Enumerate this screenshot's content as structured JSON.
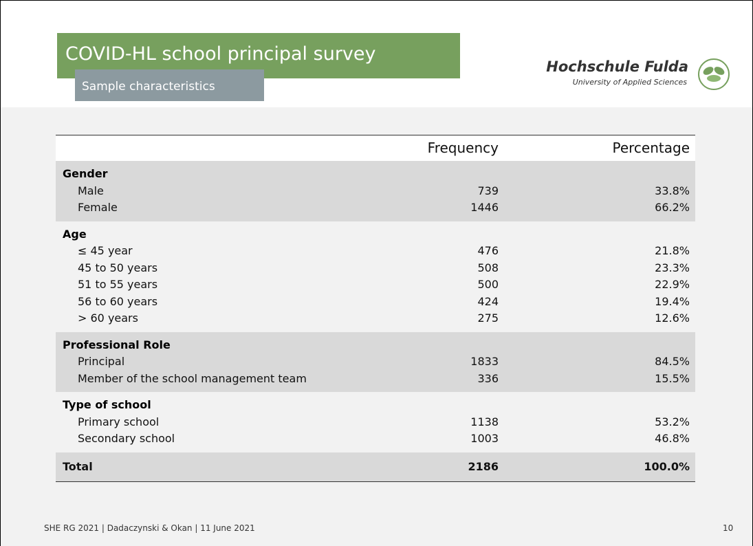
{
  "header": {
    "title": "COVID-HL school principal survey",
    "subtitle": "Sample characteristics",
    "logo_name": "Hochschule Fulda",
    "logo_tagline": "University of Applied Sciences"
  },
  "table": {
    "columns": [
      "",
      "Frequency",
      "Percentage"
    ],
    "groups": [
      {
        "label": "Gender",
        "rows": [
          [
            "Male",
            "739",
            "33.8%"
          ],
          [
            "Female",
            "1446",
            "66.2%"
          ]
        ]
      },
      {
        "label": "Age",
        "rows": [
          [
            "≤ 45 year",
            "476",
            "21.8%"
          ],
          [
            "45 to 50 years",
            "508",
            "23.3%"
          ],
          [
            "51 to 55 years",
            "500",
            "22.9%"
          ],
          [
            "56 to 60 years",
            "424",
            "19.4%"
          ],
          [
            "> 60 years",
            "275",
            "12.6%"
          ]
        ]
      },
      {
        "label": "Professional Role",
        "rows": [
          [
            "Principal",
            "1833",
            "84.5%"
          ],
          [
            "Member of the school management team",
            "336",
            "15.5%"
          ]
        ]
      },
      {
        "label": "Type of school",
        "rows": [
          [
            "Primary school",
            "1138",
            "53.2%"
          ],
          [
            "Secondary school",
            "1003",
            "46.8%"
          ]
        ]
      }
    ],
    "total": [
      "Total",
      "2186",
      "100.0%"
    ]
  },
  "footer": {
    "text": "SHE RG 2021 | Dadaczynski & Okan | 11 June 2021",
    "page": "10"
  }
}
